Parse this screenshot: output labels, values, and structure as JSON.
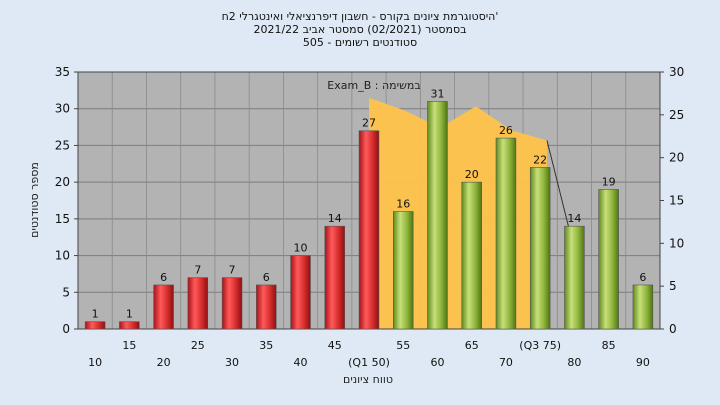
{
  "titles": {
    "line1": "'היסטוגרמת ציונים בקורס - חשבון דיפרנציאלי ואינטגרלי 2ח",
    "line2": "בסמסטר  (02/2021)  סמסטר אביב 2021/22",
    "line3": "סטודנטים רשומים - 505"
  },
  "annotation": "במשימה : Exam_B",
  "colors": {
    "background": "#dfe9f5",
    "plot_bg": "#b3b3b3",
    "bar_red": "#d42c2c",
    "bar_green": "#8db33a",
    "area_fill": "#ffc34a"
  },
  "chart_data": {
    "type": "bar",
    "xlabel": "טווח ציונים",
    "ylabel": "מספר סטודנטים",
    "ylim": [
      0,
      35
    ],
    "y2lim": [
      0,
      30
    ],
    "yticks": [
      0,
      5,
      10,
      15,
      20,
      25,
      30,
      35
    ],
    "y2ticks": [
      0,
      5,
      10,
      15,
      20,
      25,
      30
    ],
    "grid": true,
    "x_tick_labels": [
      "10",
      "15",
      "20",
      "25",
      "30",
      "35",
      "40",
      "45",
      "(Q1 50)",
      "55",
      "60",
      "65",
      "70",
      "(Q3 75)",
      "80",
      "85",
      "90"
    ],
    "bars": [
      {
        "value": 1,
        "color": "red"
      },
      {
        "value": 1,
        "color": "red"
      },
      {
        "value": 6,
        "color": "red"
      },
      {
        "value": 7,
        "color": "red"
      },
      {
        "value": 7,
        "color": "red"
      },
      {
        "value": 6,
        "color": "red"
      },
      {
        "value": 10,
        "color": "red"
      },
      {
        "value": 14,
        "color": "red"
      },
      {
        "value": 27,
        "color": "red"
      },
      {
        "value": 16,
        "color": "green"
      },
      {
        "value": 31,
        "color": "green"
      },
      {
        "value": 20,
        "color": "green"
      },
      {
        "value": 26,
        "color": "green"
      },
      {
        "value": 22,
        "color": "green"
      },
      {
        "value": 14,
        "color": "green"
      },
      {
        "value": 19,
        "color": "green"
      },
      {
        "value": 6,
        "color": "green"
      }
    ],
    "area": {
      "x_start": 8,
      "x_end": 13.2,
      "values": [
        27,
        25.5,
        23.5,
        26,
        23.2,
        22
      ]
    }
  }
}
